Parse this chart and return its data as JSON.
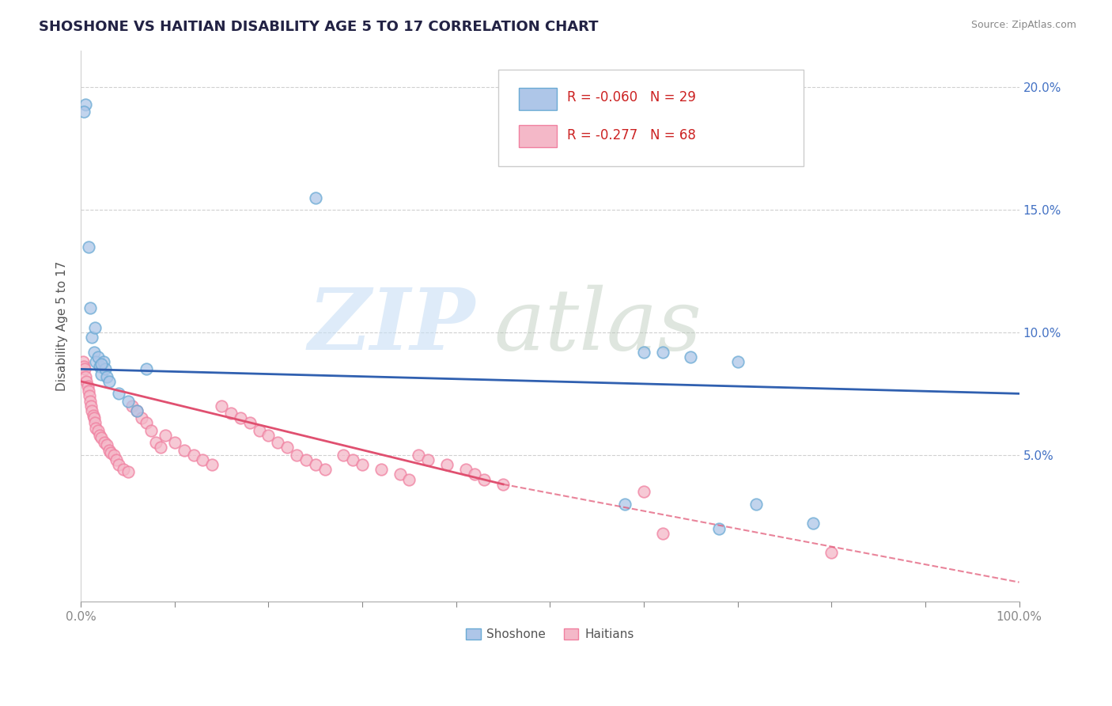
{
  "title": "SHOSHONE VS HAITIAN DISABILITY AGE 5 TO 17 CORRELATION CHART",
  "source": "Source: ZipAtlas.com",
  "ylabel": "Disability Age 5 to 17",
  "legend_r1": "R = -0.060",
  "legend_n1": "N = 29",
  "legend_r2": "R = -0.277",
  "legend_n2": "N = 68",
  "legend_label1": "Shoshone",
  "legend_label2": "Haitians",
  "shoshone_color": "#aec6e8",
  "haitian_color": "#f4b8c8",
  "shoshone_edge_color": "#6aaad4",
  "haitian_edge_color": "#f080a0",
  "shoshone_line_color": "#3060b0",
  "haitian_line_color": "#e05070",
  "title_color": "#222244",
  "source_color": "#888888",
  "ylabel_color": "#555555",
  "axis_tick_color": "#888888",
  "right_tick_color": "#4472c4",
  "grid_color": "#d0d0d0",
  "bg_color": "#ffffff",
  "legend_border_color": "#cccccc",
  "r_value_color": "#cc2222",
  "xlim": [
    0.0,
    1.0
  ],
  "ylim": [
    -0.01,
    0.215
  ],
  "ytick_positions": [
    0.05,
    0.1,
    0.15,
    0.2
  ],
  "ytick_labels_right": [
    "5.0%",
    "10.0%",
    "15.0%",
    "20.0%"
  ],
  "xtick_positions": [
    0.0,
    0.1,
    0.2,
    0.3,
    0.4,
    0.5,
    0.6,
    0.7,
    0.8,
    0.9,
    1.0
  ],
  "xtick_labels": [
    "0.0%",
    "",
    "",
    "",
    "",
    "",
    "",
    "",
    "",
    "",
    "100.0%"
  ],
  "shoshone_pts": [
    [
      0.005,
      0.193
    ],
    [
      0.008,
      0.135
    ],
    [
      0.01,
      0.11
    ],
    [
      0.012,
      0.098
    ],
    [
      0.014,
      0.092
    ],
    [
      0.016,
      0.088
    ],
    [
      0.018,
      0.09
    ],
    [
      0.02,
      0.086
    ],
    [
      0.022,
      0.083
    ],
    [
      0.024,
      0.088
    ],
    [
      0.026,
      0.085
    ],
    [
      0.028,
      0.082
    ],
    [
      0.03,
      0.08
    ],
    [
      0.04,
      0.075
    ],
    [
      0.05,
      0.072
    ],
    [
      0.06,
      0.068
    ],
    [
      0.25,
      0.155
    ],
    [
      0.6,
      0.092
    ],
    [
      0.65,
      0.09
    ],
    [
      0.7,
      0.088
    ],
    [
      0.72,
      0.03
    ],
    [
      0.78,
      0.022
    ],
    [
      0.62,
      0.092
    ],
    [
      0.58,
      0.03
    ],
    [
      0.68,
      0.02
    ],
    [
      0.015,
      0.102
    ],
    [
      0.003,
      0.19
    ],
    [
      0.022,
      0.087
    ],
    [
      0.07,
      0.085
    ]
  ],
  "haitian_pts": [
    [
      0.002,
      0.088
    ],
    [
      0.003,
      0.086
    ],
    [
      0.004,
      0.085
    ],
    [
      0.005,
      0.082
    ],
    [
      0.006,
      0.08
    ],
    [
      0.007,
      0.078
    ],
    [
      0.008,
      0.076
    ],
    [
      0.009,
      0.074
    ],
    [
      0.01,
      0.072
    ],
    [
      0.011,
      0.07
    ],
    [
      0.012,
      0.068
    ],
    [
      0.013,
      0.066
    ],
    [
      0.014,
      0.065
    ],
    [
      0.015,
      0.063
    ],
    [
      0.016,
      0.061
    ],
    [
      0.018,
      0.06
    ],
    [
      0.02,
      0.058
    ],
    [
      0.022,
      0.057
    ],
    [
      0.025,
      0.055
    ],
    [
      0.028,
      0.054
    ],
    [
      0.03,
      0.052
    ],
    [
      0.032,
      0.051
    ],
    [
      0.035,
      0.05
    ],
    [
      0.038,
      0.048
    ],
    [
      0.04,
      0.046
    ],
    [
      0.045,
      0.044
    ],
    [
      0.05,
      0.043
    ],
    [
      0.055,
      0.07
    ],
    [
      0.06,
      0.068
    ],
    [
      0.065,
      0.065
    ],
    [
      0.07,
      0.063
    ],
    [
      0.075,
      0.06
    ],
    [
      0.08,
      0.055
    ],
    [
      0.085,
      0.053
    ],
    [
      0.09,
      0.058
    ],
    [
      0.1,
      0.055
    ],
    [
      0.11,
      0.052
    ],
    [
      0.12,
      0.05
    ],
    [
      0.13,
      0.048
    ],
    [
      0.14,
      0.046
    ],
    [
      0.15,
      0.07
    ],
    [
      0.16,
      0.067
    ],
    [
      0.17,
      0.065
    ],
    [
      0.18,
      0.063
    ],
    [
      0.19,
      0.06
    ],
    [
      0.2,
      0.058
    ],
    [
      0.21,
      0.055
    ],
    [
      0.22,
      0.053
    ],
    [
      0.23,
      0.05
    ],
    [
      0.24,
      0.048
    ],
    [
      0.25,
      0.046
    ],
    [
      0.26,
      0.044
    ],
    [
      0.28,
      0.05
    ],
    [
      0.29,
      0.048
    ],
    [
      0.3,
      0.046
    ],
    [
      0.32,
      0.044
    ],
    [
      0.34,
      0.042
    ],
    [
      0.35,
      0.04
    ],
    [
      0.36,
      0.05
    ],
    [
      0.37,
      0.048
    ],
    [
      0.39,
      0.046
    ],
    [
      0.41,
      0.044
    ],
    [
      0.42,
      0.042
    ],
    [
      0.43,
      0.04
    ],
    [
      0.45,
      0.038
    ],
    [
      0.6,
      0.035
    ],
    [
      0.62,
      0.018
    ],
    [
      0.8,
      0.01
    ]
  ]
}
